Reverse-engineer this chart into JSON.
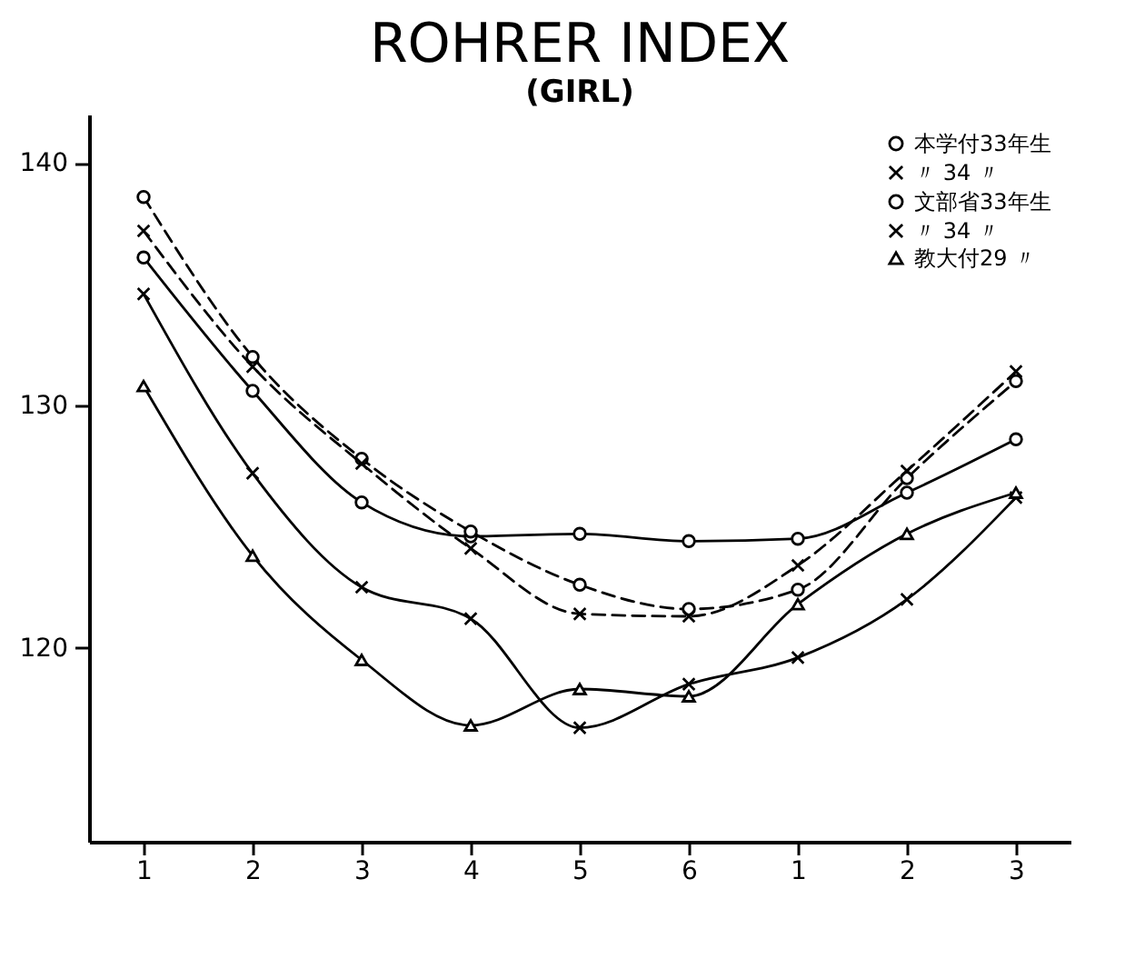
{
  "chart_data": {
    "type": "line",
    "title": "ROHRER INDEX",
    "subtitle": "(GIRL)",
    "categories": [
      "1",
      "2",
      "3",
      "4",
      "5",
      "6",
      "1",
      "2",
      "3"
    ],
    "series": [
      {
        "name": "本学付33年生",
        "color": "#000000",
        "marker": "circle",
        "line_style": "solid",
        "values": [
          136.1,
          130.6,
          126.0,
          124.6,
          124.7,
          124.4,
          124.5,
          126.4,
          128.6
        ]
      },
      {
        "name": "〃 34 〃",
        "color": "#000000",
        "marker": "cross",
        "line_style": "solid",
        "values": [
          134.6,
          127.2,
          122.5,
          121.2,
          116.7,
          118.5,
          119.6,
          122.0,
          126.2
        ]
      },
      {
        "name": "文部省33年生",
        "color": "#000000",
        "marker": "circle",
        "line_style": "dashed",
        "values": [
          138.6,
          132.0,
          127.8,
          124.8,
          122.6,
          121.6,
          122.4,
          127.0,
          131.0
        ]
      },
      {
        "name": "〃 34 〃",
        "color": "#000000",
        "marker": "cross",
        "line_style": "dashed",
        "values": [
          137.2,
          131.6,
          127.6,
          124.1,
          121.4,
          121.3,
          123.4,
          127.3,
          131.4
        ]
      },
      {
        "name": "教大付29 〃",
        "color": "#000000",
        "marker": "triangle",
        "line_style": "solid",
        "values": [
          130.8,
          123.8,
          119.5,
          116.8,
          118.3,
          118.0,
          121.8,
          124.7,
          126.4
        ]
      }
    ],
    "ylim": [
      112,
      142
    ],
    "yticks": [
      120,
      130,
      140
    ],
    "grid": false,
    "legend": "top right"
  }
}
